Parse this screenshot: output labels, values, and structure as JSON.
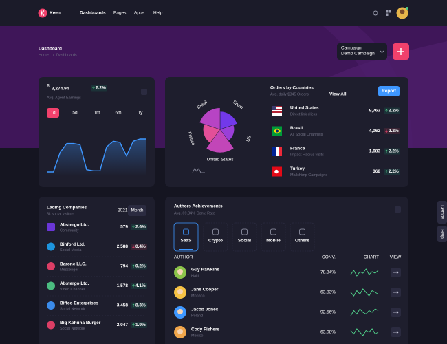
{
  "header": {
    "logo": "Keen",
    "nav": [
      "Dashboards",
      "Pages",
      "Apps",
      "Help"
    ],
    "active_nav": 0
  },
  "toolbar": {
    "title": "Dashboard",
    "breadcrumb": [
      "Home",
      "Dashboards"
    ],
    "campaign_label": "Campaign",
    "campaign": "Demo Campaign"
  },
  "earnings": {
    "currency": "$",
    "amount": "3,274.94",
    "change": "2.2%",
    "trend": "up",
    "label": "Avg. Agent Earnings",
    "periods": [
      "1d",
      "5d",
      "1m",
      "6m",
      "1y"
    ],
    "active_period": 0
  },
  "chart_data": [
    {
      "type": "area",
      "color": "#3e97ff",
      "values": [
        18,
        18,
        35,
        43,
        43,
        42,
        20,
        19,
        19,
        40,
        45,
        44,
        32,
        45,
        47,
        47
      ]
    },
    {
      "type": "polar",
      "categories": [
        "Spain",
        "US",
        "United States",
        "France",
        "Brasil"
      ],
      "values": [
        30,
        22,
        42,
        28,
        38
      ],
      "colors": [
        "#7239ea",
        "#9a3fd8",
        "#c246b8",
        "#e34f98",
        "#b744c4"
      ]
    }
  ],
  "orders": {
    "title": "Orders by Countries",
    "subtitle": "Avg. daily $345 Orders.",
    "link": "View All",
    "button": "Report",
    "rows": [
      {
        "country": "United States",
        "source": "Direct link clicks",
        "value": "9,763",
        "change": "2.2%",
        "trend": "up"
      },
      {
        "country": "Brasil",
        "source": "All Social Channels",
        "value": "4,062",
        "change": "2.2%",
        "trend": "down"
      },
      {
        "country": "France",
        "source": "Impact Radius visits",
        "value": "1,683",
        "change": "2.2%",
        "trend": "up"
      },
      {
        "country": "Turkey",
        "source": "Mailchimp Campaigns",
        "value": "368",
        "change": "2.2%",
        "trend": "up"
      }
    ]
  },
  "companies": {
    "title": "Lading Companies",
    "subtitle": "8k social visitors",
    "year": "2021",
    "button": "Month",
    "rows": [
      {
        "name": "Abstergo Ltd.",
        "category": "Community",
        "value": "579",
        "change": "2.6%",
        "trend": "up"
      },
      {
        "name": "Binford Ltd.",
        "category": "Social Media",
        "value": "2,588",
        "change": "0.4%",
        "trend": "down"
      },
      {
        "name": "Barone LLC.",
        "category": "Messenger",
        "value": "794",
        "change": "0.2%",
        "trend": "up"
      },
      {
        "name": "Abstergo Ltd.",
        "category": "Video Channel",
        "value": "1,578",
        "change": "4.1%",
        "trend": "up"
      },
      {
        "name": "Biffco Enterprises",
        "category": "Social Network",
        "value": "3,458",
        "change": "8.3%",
        "trend": "up"
      },
      {
        "name": "Big Kahuna Burger",
        "category": "Social Network",
        "value": "2,047",
        "change": "1.9%",
        "trend": "up"
      }
    ]
  },
  "authors": {
    "title": "Authors Achievements",
    "subtitle": "Avg. 69.34% Conv. Rate",
    "tabs": [
      "SaaS",
      "Crypto",
      "Social",
      "Mobile",
      "Others"
    ],
    "active_tab": 0,
    "columns": [
      "AUTHOR",
      "CONV.",
      "CHART",
      "VIEW"
    ],
    "rows": [
      {
        "name": "Guy Hawkins",
        "country": "Haiti",
        "conv": "78.34%",
        "chart": [
          4,
          7,
          3,
          6,
          5,
          8,
          4,
          6,
          5,
          7
        ]
      },
      {
        "name": "Jane Cooper",
        "country": "Monaco",
        "conv": "63.83%",
        "chart": [
          5,
          3,
          6,
          4,
          7,
          5,
          3,
          6,
          5,
          4
        ]
      },
      {
        "name": "Jacob Jones",
        "country": "Poland",
        "conv": "92.56%",
        "chart": [
          3,
          6,
          4,
          7,
          5,
          4,
          6,
          5,
          7,
          6
        ]
      },
      {
        "name": "Cody Fishers",
        "country": "Mexico",
        "conv": "63.08%",
        "chart": [
          6,
          4,
          7,
          5,
          3,
          6,
          5,
          7,
          4,
          5
        ]
      }
    ]
  },
  "side": [
    "Demos",
    "Help"
  ]
}
